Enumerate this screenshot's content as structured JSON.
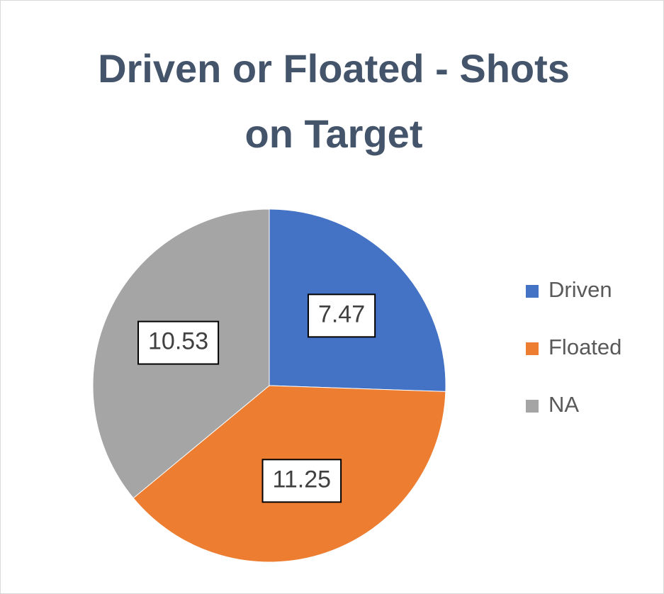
{
  "chart_data": {
    "type": "pie",
    "title": "Driven or Floated - Shots on Target",
    "categories": [
      "Driven",
      "Floated",
      "NA"
    ],
    "values": [
      7.47,
      11.25,
      10.53
    ],
    "colors": [
      "#4472c4",
      "#ed7d31",
      "#a5a5a5"
    ],
    "legend": "right"
  }
}
